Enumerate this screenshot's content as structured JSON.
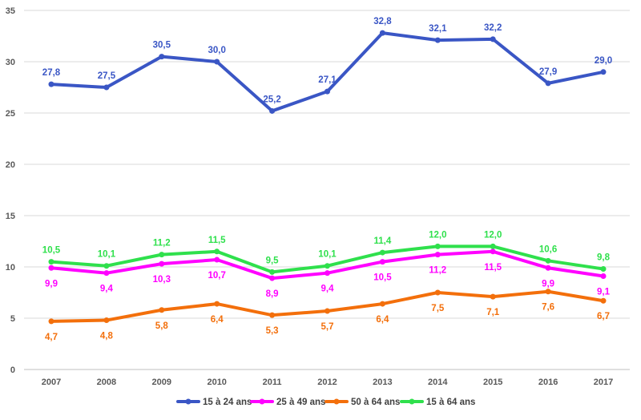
{
  "chart_data": {
    "type": "line",
    "categories": [
      "2007",
      "2008",
      "2009",
      "2010",
      "2011",
      "2012",
      "2013",
      "2014",
      "2015",
      "2016",
      "2017"
    ],
    "ylim": [
      0,
      35
    ],
    "yticks": [
      "0",
      "5",
      "10",
      "15",
      "20",
      "25",
      "30",
      "35"
    ],
    "grid": true,
    "legend_position": "bottom",
    "series": [
      {
        "name": "15 à 24 ans",
        "color": "#3a56c5",
        "values": [
          27.8,
          27.5,
          30.5,
          30.0,
          25.2,
          27.1,
          32.8,
          32.1,
          32.2,
          27.9,
          29.0
        ],
        "labels": [
          "27,8",
          "27,5",
          "30,5",
          "30,0",
          "25,2",
          "27,1",
          "32,8",
          "32,1",
          "32,2",
          "27,9",
          "29,0"
        ]
      },
      {
        "name": "25 à 49 ans",
        "color": "#ff00ff",
        "values": [
          9.9,
          9.4,
          10.3,
          10.7,
          8.9,
          9.4,
          10.5,
          11.2,
          11.5,
          9.9,
          9.1
        ],
        "labels": [
          "9,9",
          "9,4",
          "10,3",
          "10,7",
          "8,9",
          "9,4",
          "10,5",
          "11,2",
          "11,5",
          "9,9",
          "9,1"
        ]
      },
      {
        "name": "50 à 64 ans",
        "color": "#f36f0b",
        "values": [
          4.7,
          4.8,
          5.8,
          6.4,
          5.3,
          5.7,
          6.4,
          7.5,
          7.1,
          7.6,
          6.7
        ],
        "labels": [
          "4,7",
          "4,8",
          "5,8",
          "6,4",
          "5,3",
          "5,7",
          "6,4",
          "7,5",
          "7,1",
          "7,6",
          "6,7"
        ]
      },
      {
        "name": "15 à 64 ans",
        "color": "#2fe04c",
        "values": [
          10.5,
          10.1,
          11.2,
          11.5,
          9.5,
          10.1,
          11.4,
          12.0,
          12.0,
          10.6,
          9.8
        ],
        "labels": [
          "10,5",
          "10,1",
          "11,2",
          "11,5",
          "9,5",
          "10,1",
          "11,4",
          "12,0",
          "12,0",
          "10,6",
          "9,8"
        ]
      }
    ]
  }
}
